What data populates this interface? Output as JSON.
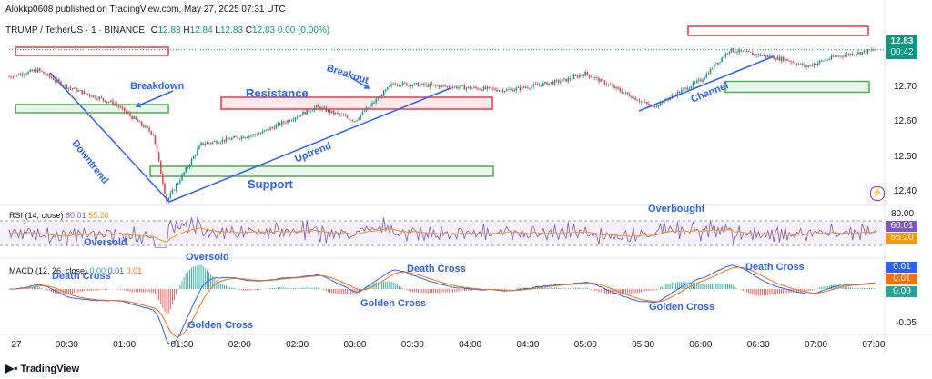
{
  "header": {
    "publisher": "Alokkp0608 published on TradingView.com, May 27, 2025 07:31 UTC",
    "symbol": "TRUMP / TetherUS · 1 · BINANCE",
    "ohlc": {
      "o_label": "O",
      "o": "12.83",
      "h_label": "H",
      "h": "12.84",
      "l_label": "L",
      "l": "12.83",
      "c_label": "C",
      "c": "12.83",
      "chg": "0.00 (0.00%)"
    }
  },
  "price_tag": {
    "value": "12.83",
    "countdown": "00:42"
  },
  "y_axis": [
    "12.70",
    "12.60",
    "12.50",
    "12.40"
  ],
  "x_axis": [
    "27",
    "00:30",
    "01:00",
    "01:30",
    "02:00",
    "02:30",
    "03:00",
    "03:30",
    "04:00",
    "04:30",
    "05:00",
    "05:30",
    "06:00",
    "06:30",
    "07:00",
    "07:30"
  ],
  "rsi": {
    "label": "RSI (14, close)",
    "v1": "60.01",
    "v2": "55.20",
    "upper": "80.00",
    "tag1": "60.01",
    "tag2": "55.20"
  },
  "macd": {
    "label": "MACD (12, 26, close)",
    "v1": "0.00",
    "v2": "0.01",
    "v3": "0.01",
    "tag1": "0.01",
    "tag2": "0.01",
    "tag3": "0.00",
    "low": "-0.05"
  },
  "annotations": {
    "breakdown": "Breakdown",
    "resistance": "Resistance",
    "breakout": "Breakout",
    "downtrend": "Downtrend",
    "uptrend": "Uptrend",
    "support": "Support",
    "channel": "Channel",
    "overbought": "Overbought",
    "oversold1": "Oversold",
    "oversold2": "Oversold",
    "death1": "Death Cross",
    "death2": "Death Cross",
    "death3": "Death Cross",
    "golden1": "Golden Cross",
    "golden2": "Golden Cross",
    "golden3": "Golden Cross"
  },
  "footer": {
    "brand": "TradingView"
  },
  "colors": {
    "up": "#089981",
    "down": "#f23645",
    "accent": "#2962ff",
    "rsi": "#7e57c2",
    "signal": "#ff9800"
  },
  "chart_data": {
    "type": "candlestick",
    "x_start": "00:00",
    "x_end": "07:31",
    "interval": "1m",
    "ylim": [
      12.37,
      12.87
    ],
    "key_points": [
      {
        "t": "00:00",
        "p": 12.75
      },
      {
        "t": "00:15",
        "p": 12.77
      },
      {
        "t": "00:30",
        "p": 12.72
      },
      {
        "t": "00:55",
        "p": 12.67
      },
      {
        "t": "01:15",
        "p": 12.58
      },
      {
        "t": "01:22",
        "p": 12.38
      },
      {
        "t": "01:40",
        "p": 12.55
      },
      {
        "t": "02:10",
        "p": 12.58
      },
      {
        "t": "02:40",
        "p": 12.66
      },
      {
        "t": "03:00",
        "p": 12.62
      },
      {
        "t": "03:20",
        "p": 12.73
      },
      {
        "t": "03:50",
        "p": 12.72
      },
      {
        "t": "04:20",
        "p": 12.71
      },
      {
        "t": "04:50",
        "p": 12.74
      },
      {
        "t": "05:00",
        "p": 12.76
      },
      {
        "t": "05:35",
        "p": 12.66
      },
      {
        "t": "06:00",
        "p": 12.74
      },
      {
        "t": "06:15",
        "p": 12.83
      },
      {
        "t": "06:45",
        "p": 12.8
      },
      {
        "t": "06:55",
        "p": 12.78
      },
      {
        "t": "07:10",
        "p": 12.81
      },
      {
        "t": "07:31",
        "p": 12.83
      }
    ],
    "levels": {
      "resistance_top": 12.86,
      "resistance_mid": 12.67,
      "support": 12.47,
      "channel_floor": 12.72
    }
  }
}
